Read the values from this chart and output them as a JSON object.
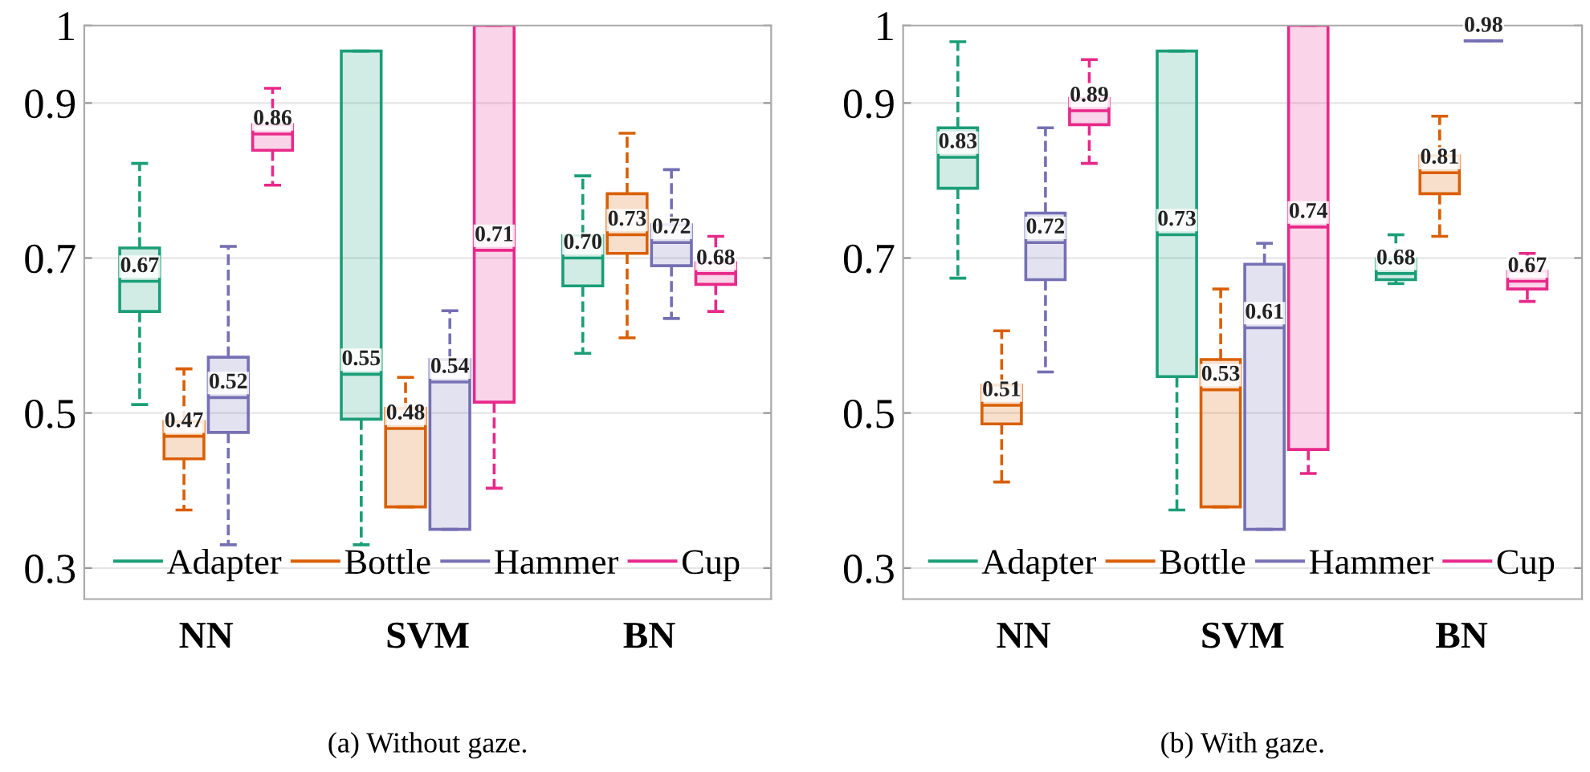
{
  "chart_data": [
    {
      "type": "box",
      "categories": [
        "NN",
        "SVM",
        "BN"
      ],
      "ylim": [
        0.26,
        1
      ],
      "yticks": [
        0.3,
        0.5,
        0.7,
        0.9,
        1
      ],
      "grid": "y",
      "legend": "bottom",
      "annotations": [
        "(a) Without gaze."
      ],
      "series": [
        {
          "name": "Adapter",
          "color": "#1b9e77",
          "value_labels": [
            "0.67",
            "0.55",
            "0.70"
          ],
          "boxes": [
            {
              "low": 0.511,
              "q1": 0.631,
              "median": 0.67,
              "q3": 0.713,
              "high": 0.822
            },
            {
              "low": 0.33,
              "q1": 0.492,
              "median": 0.55,
              "q3": 0.967,
              "high": 0.967
            },
            {
              "low": 0.577,
              "q1": 0.664,
              "median": 0.7,
              "q3": 0.729,
              "high": 0.806
            }
          ]
        },
        {
          "name": "Bottle",
          "color": "#d95f02",
          "value_labels": [
            "0.47",
            "0.48",
            "0.73"
          ],
          "boxes": [
            {
              "low": 0.375,
              "q1": 0.441,
              "median": 0.47,
              "q3": 0.489,
              "high": 0.557
            },
            {
              "low": 0.379,
              "q1": 0.379,
              "median": 0.48,
              "q3": 0.506,
              "high": 0.546
            },
            {
              "low": 0.597,
              "q1": 0.706,
              "median": 0.73,
              "q3": 0.783,
              "high": 0.861
            }
          ]
        },
        {
          "name": "Hammer",
          "color": "#7570b3",
          "value_labels": [
            "0.52",
            "0.54",
            "0.72"
          ],
          "boxes": [
            {
              "low": 0.33,
              "q1": 0.475,
              "median": 0.52,
              "q3": 0.572,
              "high": 0.715
            },
            {
              "low": 0.35,
              "q1": 0.35,
              "median": 0.54,
              "q3": 0.569,
              "high": 0.632
            },
            {
              "low": 0.622,
              "q1": 0.69,
              "median": 0.72,
              "q3": 0.743,
              "high": 0.814
            }
          ]
        },
        {
          "name": "Cup",
          "color": "#e7298a",
          "value_labels": [
            "0.86",
            "0.71",
            "0.68"
          ],
          "boxes": [
            {
              "low": 0.794,
              "q1": 0.839,
              "median": 0.86,
              "q3": 0.872,
              "high": 0.919
            },
            {
              "low": 0.403,
              "q1": 0.514,
              "median": 0.71,
              "q3": 1.0,
              "high": 1.0
            },
            {
              "low": 0.631,
              "q1": 0.666,
              "median": 0.68,
              "q3": 0.694,
              "high": 0.728
            }
          ]
        }
      ]
    },
    {
      "type": "box",
      "categories": [
        "NN",
        "SVM",
        "BN"
      ],
      "ylim": [
        0.26,
        1
      ],
      "yticks": [
        0.3,
        0.5,
        0.7,
        0.9,
        1
      ],
      "grid": "y",
      "legend": "bottom",
      "annotations": [
        "(b) With gaze."
      ],
      "series": [
        {
          "name": "Adapter",
          "color": "#1b9e77",
          "value_labels": [
            "0.83",
            "0.73",
            "0.68"
          ],
          "boxes": [
            {
              "low": 0.674,
              "q1": 0.79,
              "median": 0.83,
              "q3": 0.868,
              "high": 0.979
            },
            {
              "low": 0.375,
              "q1": 0.547,
              "median": 0.73,
              "q3": 0.967,
              "high": 0.967
            },
            {
              "low": 0.667,
              "q1": 0.672,
              "median": 0.68,
              "q3": 0.699,
              "high": 0.73
            }
          ]
        },
        {
          "name": "Bottle",
          "color": "#d95f02",
          "value_labels": [
            "0.51",
            "0.53",
            "0.81"
          ],
          "boxes": [
            {
              "low": 0.411,
              "q1": 0.486,
              "median": 0.51,
              "q3": 0.536,
              "high": 0.606
            },
            {
              "low": 0.379,
              "q1": 0.379,
              "median": 0.53,
              "q3": 0.569,
              "high": 0.66
            },
            {
              "low": 0.728,
              "q1": 0.783,
              "median": 0.81,
              "q3": 0.832,
              "high": 0.883
            }
          ]
        },
        {
          "name": "Hammer",
          "color": "#7570b3",
          "value_labels": [
            "0.72",
            "0.61",
            "0.98"
          ],
          "boxes": [
            {
              "low": 0.553,
              "q1": 0.672,
              "median": 0.72,
              "q3": 0.758,
              "high": 0.868
            },
            {
              "low": 0.35,
              "q1": 0.35,
              "median": 0.61,
              "q3": 0.692,
              "high": 0.719
            },
            {
              "low": 0.98,
              "q1": 0.98,
              "median": 0.98,
              "q3": 0.98,
              "high": 0.98
            }
          ]
        },
        {
          "name": "Cup",
          "color": "#e7298a",
          "value_labels": [
            "0.89",
            "0.74",
            "0.67"
          ],
          "boxes": [
            {
              "low": 0.822,
              "q1": 0.872,
              "median": 0.89,
              "q3": 0.906,
              "high": 0.956
            },
            {
              "low": 0.422,
              "q1": 0.453,
              "median": 0.74,
              "q3": 1.0,
              "high": 1.0
            },
            {
              "low": 0.644,
              "q1": 0.66,
              "median": 0.67,
              "q3": 0.683,
              "high": 0.706
            }
          ]
        }
      ]
    }
  ]
}
